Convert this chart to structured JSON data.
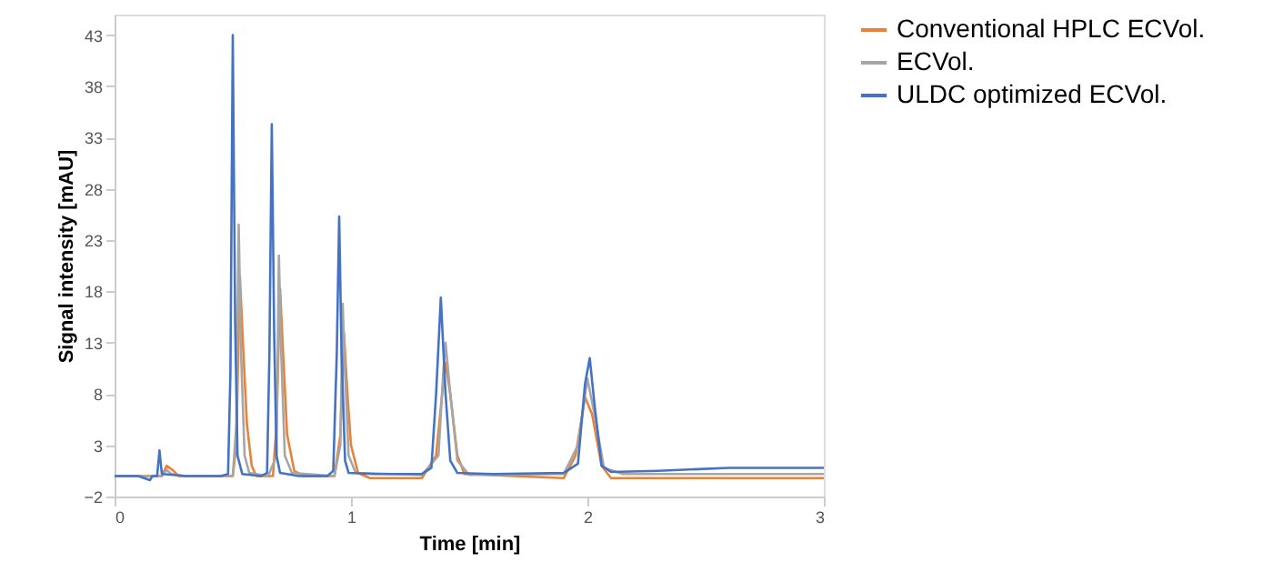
{
  "chart_data": {
    "type": "line",
    "xlabel": "Time [min]",
    "ylabel": "Signal intensity [mAU]",
    "xlim": [
      0,
      3
    ],
    "xticks": [
      0,
      1,
      2,
      3
    ],
    "ylim": [
      -2,
      45
    ],
    "yticks": [
      -2,
      3,
      8,
      13,
      18,
      23,
      28,
      33,
      38,
      43
    ],
    "grid": false,
    "legend": "right",
    "marker": "none",
    "line_style": "solid",
    "series": [
      {
        "name": "Conventional HPLC ECVol.",
        "color": "#e8823a",
        "x": [
          0,
          0.2,
          0.22,
          0.25,
          0.27,
          0.5,
          0.515,
          0.53,
          0.545,
          0.56,
          0.58,
          0.6,
          0.67,
          0.685,
          0.7,
          0.715,
          0.73,
          0.76,
          0.8,
          0.93,
          0.955,
          0.97,
          0.985,
          1.0,
          1.03,
          1.08,
          1.3,
          1.36,
          1.39,
          1.4,
          1.42,
          1.45,
          1.48,
          1.9,
          1.95,
          1.99,
          2.02,
          2.06,
          2.1,
          3
        ],
        "values": [
          0,
          0,
          1,
          0.5,
          0,
          0,
          3,
          19.5,
          12,
          5,
          1,
          0,
          0,
          5,
          18.3,
          11,
          4,
          0.5,
          0,
          0,
          4,
          14,
          8,
          3,
          0.3,
          -0.2,
          -0.2,
          2,
          9,
          11,
          8,
          2,
          0.2,
          -0.2,
          2,
          7.7,
          6,
          1,
          -0.2,
          -0.2
        ]
      },
      {
        "name": "ECVol.",
        "color": "#a6a6a6",
        "x": [
          0,
          0.2,
          0.22,
          0.24,
          0.3,
          0.5,
          0.515,
          0.525,
          0.535,
          0.55,
          0.57,
          0.65,
          0.685,
          0.695,
          0.705,
          0.72,
          0.75,
          0.93,
          0.955,
          0.965,
          0.975,
          0.99,
          1.02,
          1.3,
          1.37,
          1.39,
          1.4,
          1.42,
          1.45,
          1.5,
          1.9,
          1.96,
          2.0,
          2.03,
          2.07,
          2.15,
          3
        ],
        "values": [
          0,
          0,
          0.6,
          0.2,
          0,
          0,
          5,
          24.5,
          12,
          2,
          0.3,
          0,
          2,
          21.5,
          12,
          2,
          0.3,
          0,
          3,
          16.8,
          10,
          2,
          0.3,
          0.1,
          2,
          10,
          13,
          8,
          1.5,
          0.1,
          0.2,
          3,
          9.5,
          6,
          0.8,
          0.2,
          0.2
        ]
      },
      {
        "name": "ULDC optimized ECVol.",
        "color": "#4472c4",
        "x": [
          0,
          0.1,
          0.15,
          0.16,
          0.18,
          0.19,
          0.2,
          0.25,
          0.3,
          0.45,
          0.48,
          0.49,
          0.5,
          0.51,
          0.52,
          0.54,
          0.62,
          0.645,
          0.655,
          0.665,
          0.675,
          0.685,
          0.7,
          0.78,
          0.9,
          0.925,
          0.94,
          0.95,
          0.96,
          0.975,
          0.99,
          1.1,
          1.3,
          1.34,
          1.36,
          1.38,
          1.4,
          1.42,
          1.45,
          1.6,
          1.9,
          1.96,
          1.99,
          2.01,
          2.03,
          2.06,
          2.1,
          2.3,
          2.6,
          3
        ],
        "values": [
          0,
          0,
          -0.4,
          0,
          0,
          2.5,
          0.2,
          0.1,
          0,
          0,
          0.2,
          10,
          43,
          15,
          2,
          0.2,
          0,
          0.3,
          12,
          34.3,
          14,
          2,
          0.3,
          0,
          0,
          0.5,
          12,
          25.3,
          12,
          1.5,
          0.3,
          0.2,
          0.2,
          0.8,
          8,
          17.4,
          8,
          1.5,
          0.3,
          0.2,
          0.3,
          1.2,
          9,
          11.5,
          7,
          1,
          0.4,
          0.5,
          0.8,
          0.8
        ]
      }
    ]
  }
}
